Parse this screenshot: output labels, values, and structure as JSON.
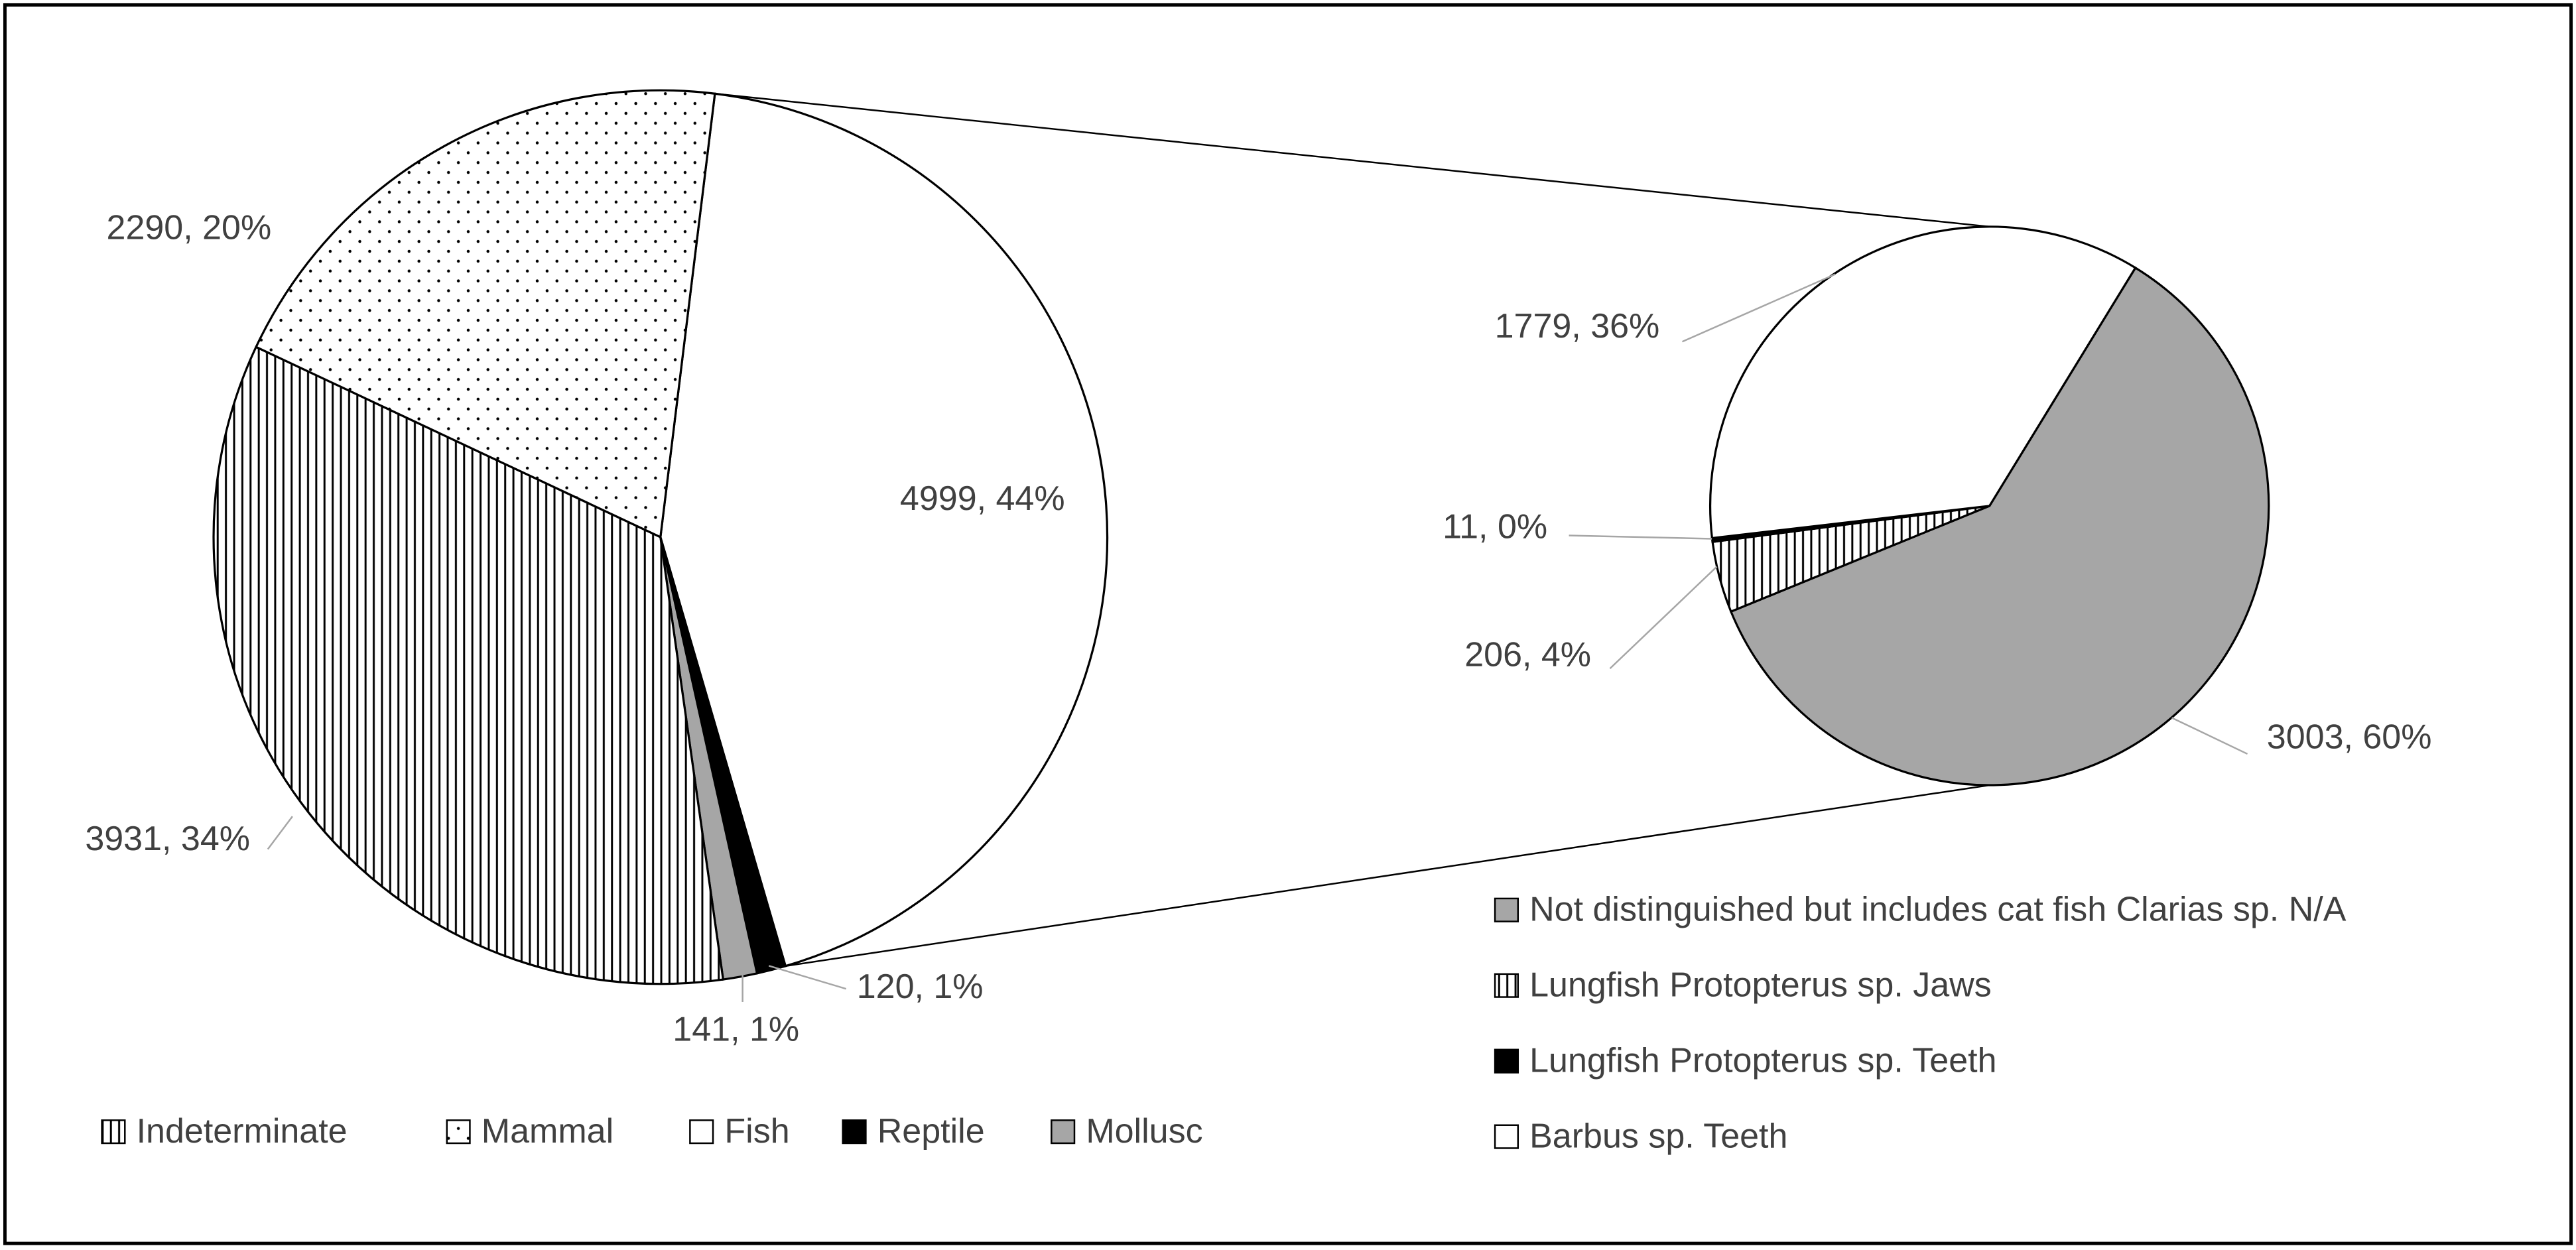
{
  "chart_data": [
    {
      "type": "pie",
      "categories": [
        "Indeterminate",
        "Mammal",
        "Fish",
        "Reptile",
        "Mollusc"
      ],
      "values": [
        3931,
        2290,
        4999,
        120,
        141
      ],
      "value_labels": [
        "3931, 34%",
        "2290, 20%",
        "4999, 44%",
        "120, 1%",
        "141, 1%"
      ],
      "colors": [
        "#ffffff",
        "#ffffff",
        "#ffffff",
        "#000000",
        "#a6a6a6"
      ],
      "patterns": [
        "vertical-lines",
        "dots",
        "none",
        "none",
        "none"
      ]
    },
    {
      "type": "pie",
      "categories": [
        "Not distinguished but includes cat fish Clarias sp.  N/A",
        "Lungfish Protopterus sp. Jaws",
        "Lungfish Protopterus sp. Teeth",
        "Barbus sp. Teeth"
      ],
      "values": [
        3003,
        206,
        11,
        1779
      ],
      "value_labels": [
        "3003, 60%",
        "206, 4%",
        "11, 0%",
        "1779, 36%"
      ],
      "colors": [
        "#a6a6a6",
        "#ffffff",
        "#000000",
        "#ffffff"
      ],
      "patterns": [
        "none",
        "vertical-lines",
        "none",
        "none"
      ]
    }
  ]
}
